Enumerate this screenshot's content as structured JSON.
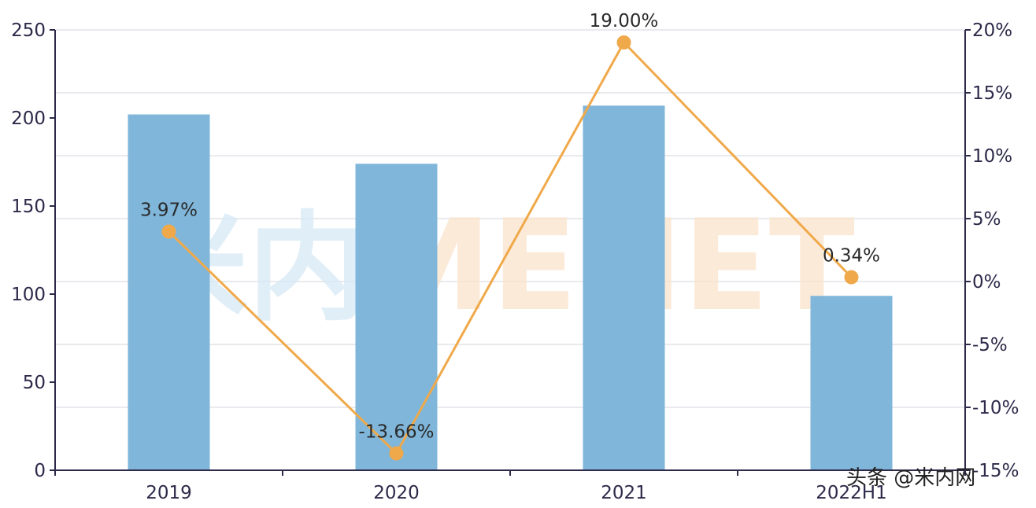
{
  "chart_data": {
    "type": "bar",
    "categories": [
      "2019",
      "2020",
      "2021",
      "2022H1"
    ],
    "series": [
      {
        "type": "bar",
        "axis": "left",
        "values": [
          202,
          174,
          207,
          99
        ],
        "color": "#7fb6da"
      },
      {
        "type": "line",
        "axis": "right",
        "values": [
          3.97,
          -13.66,
          19.0,
          0.34
        ],
        "color": "#f0a94a",
        "labels": [
          "3.97%",
          "-13.66%",
          "19.00%",
          "0.34%"
        ]
      }
    ],
    "ylim": [
      0,
      250
    ],
    "y_ticks": [
      "0",
      "50",
      "100",
      "150",
      "200",
      "250"
    ],
    "y2lim": [
      -15,
      20
    ],
    "y2_ticks": [
      "-15%",
      "-10%",
      "-5%",
      "0%",
      "5%",
      "10%",
      "15%",
      "20%"
    ],
    "grid": true
  },
  "watermark": {
    "cn": "米内",
    "en": "MENET"
  },
  "attribution": "头条 @米内网"
}
